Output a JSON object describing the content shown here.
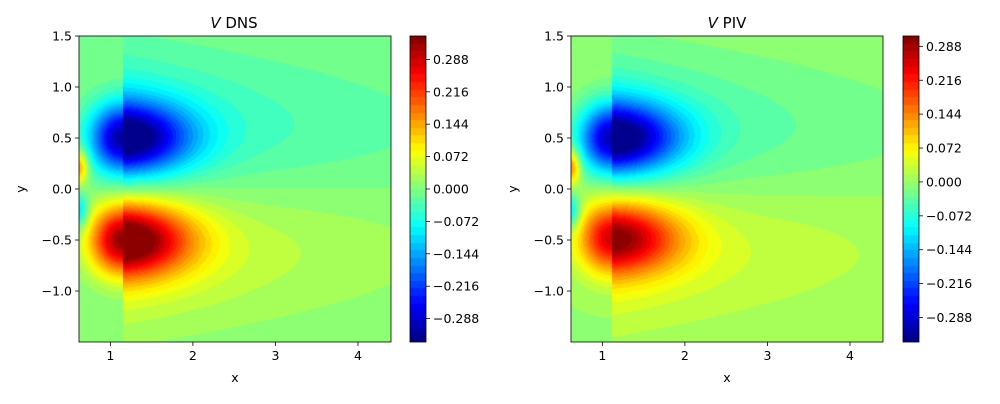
{
  "chart_data": [
    {
      "type": "heatmap",
      "title_symbol": "V",
      "title_rest": " DNS",
      "xlabel": "x",
      "ylabel": "y",
      "xlim": [
        0.62,
        4.4
      ],
      "ylim": [
        -1.5,
        1.5
      ],
      "x_ticks": [
        1,
        2,
        3,
        4
      ],
      "x_tick_labels": [
        "1",
        "2",
        "3",
        "4"
      ],
      "y_ticks": [
        1.5,
        1.0,
        0.5,
        0.0,
        -0.5,
        -1.0
      ],
      "y_tick_labels": [
        "1.5",
        "1.0",
        "0.5",
        "0.0",
        "−0.5",
        "−1.0"
      ],
      "colorbar": {
        "colormap": "jet",
        "range": [
          -0.34,
          0.34
        ],
        "ticks": [
          0.288,
          0.216,
          0.144,
          0.072,
          0.0,
          -0.072,
          -0.144,
          -0.216,
          -0.288
        ],
        "tick_labels": [
          "0.288",
          "0.216",
          "0.144",
          "0.072",
          "0.000",
          "−0.072",
          "−0.144",
          "−0.216",
          "−0.288"
        ]
      },
      "features": [
        {
          "kind": "vortex",
          "x": 1.15,
          "y": 0.5,
          "value": -0.32
        },
        {
          "kind": "vortex",
          "x": 1.15,
          "y": -0.5,
          "value": 0.33
        },
        {
          "kind": "edge",
          "x": 0.62,
          "y": 0.22,
          "value": 0.16
        },
        {
          "kind": "edge",
          "x": 0.62,
          "y": -0.22,
          "value": -0.12
        }
      ]
    },
    {
      "type": "heatmap",
      "title_symbol": "V",
      "title_rest": " PIV",
      "xlabel": "x",
      "ylabel": "y",
      "xlim": [
        0.62,
        4.4
      ],
      "ylim": [
        -1.5,
        1.5
      ],
      "x_ticks": [
        1,
        2,
        3,
        4
      ],
      "x_tick_labels": [
        "1",
        "2",
        "3",
        "4"
      ],
      "y_ticks": [
        1.5,
        1.0,
        0.5,
        0.0,
        -0.5,
        -1.0
      ],
      "y_tick_labels": [
        "1.5",
        "1.0",
        "0.5",
        "0.0",
        "−0.5",
        "−1.0"
      ],
      "colorbar": {
        "colormap": "jet",
        "range": [
          -0.34,
          0.31
        ],
        "ticks": [
          0.288,
          0.216,
          0.144,
          0.072,
          0.0,
          -0.072,
          -0.144,
          -0.216,
          -0.288
        ],
        "tick_labels": [
          "0.288",
          "0.216",
          "0.144",
          "0.072",
          "0.000",
          "−0.072",
          "−0.144",
          "−0.216",
          "−0.288"
        ]
      },
      "features": [
        {
          "kind": "vortex",
          "x": 1.12,
          "y": 0.5,
          "value": -0.31
        },
        {
          "kind": "vortex",
          "x": 1.12,
          "y": -0.48,
          "value": 0.26
        },
        {
          "kind": "edge",
          "x": 0.62,
          "y": 0.22,
          "value": 0.16
        },
        {
          "kind": "edge",
          "x": 0.62,
          "y": -0.22,
          "value": -0.12
        }
      ]
    }
  ]
}
